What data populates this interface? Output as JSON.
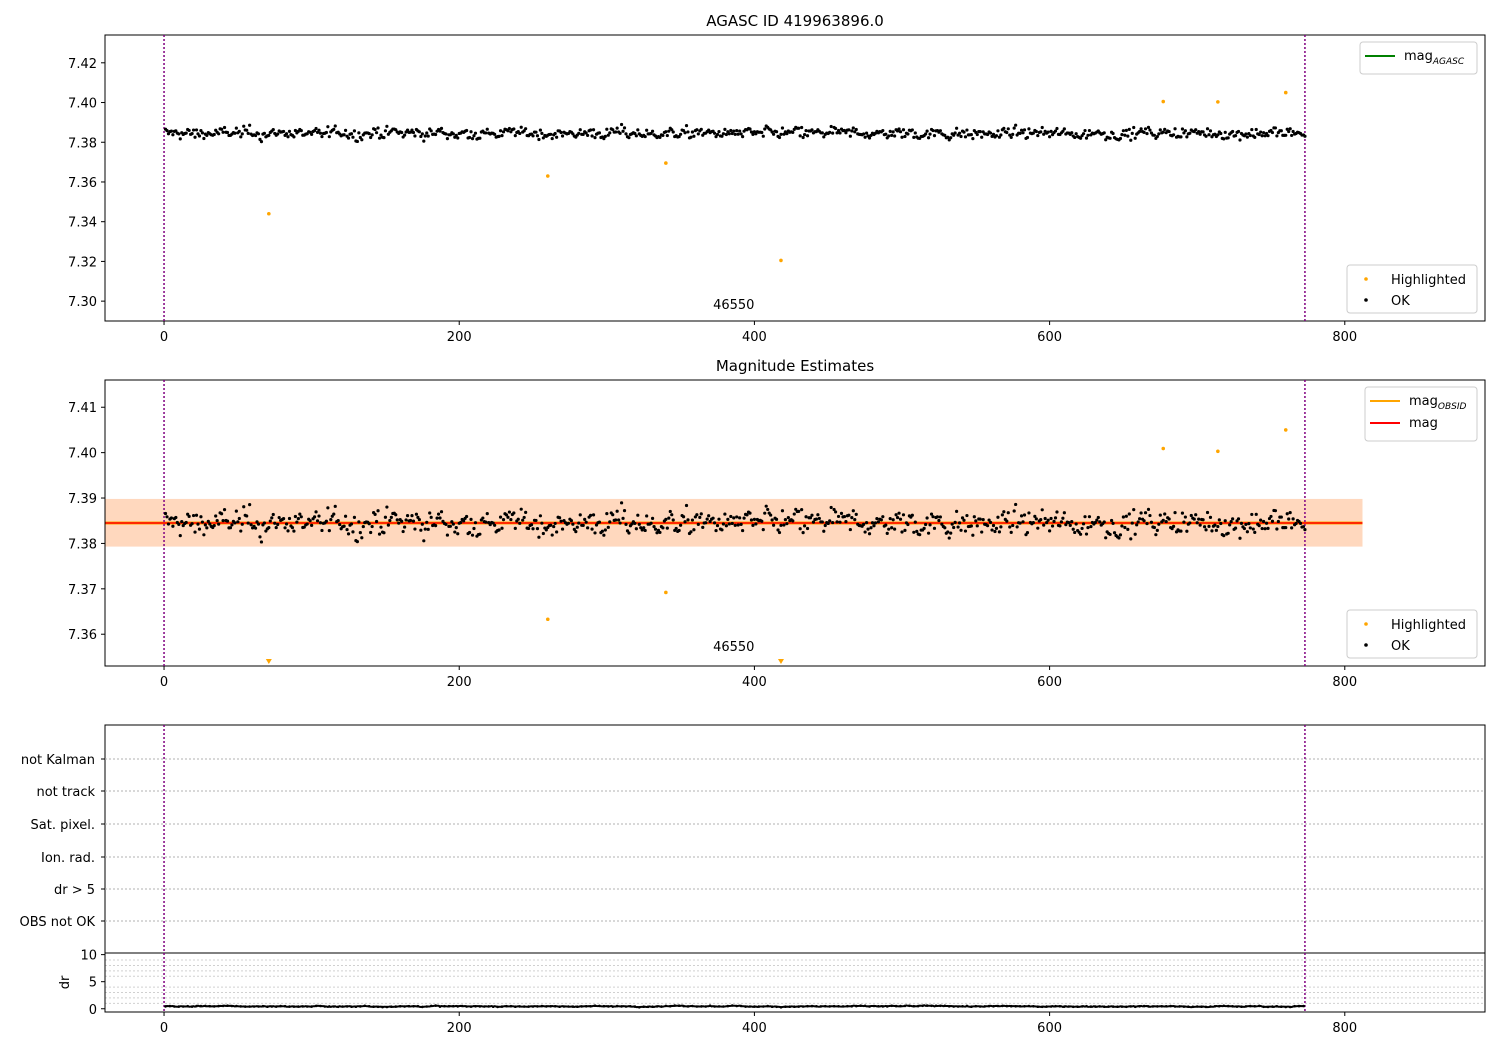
{
  "chart_data": [
    {
      "type": "scatter",
      "title": "AGASC ID 419963896.0",
      "xlim": [
        -40,
        895
      ],
      "ylim": [
        7.29,
        7.434
      ],
      "xticks": [
        0,
        200,
        400,
        600,
        800
      ],
      "yticks": [
        7.3,
        7.32,
        7.34,
        7.36,
        7.38,
        7.4,
        7.42
      ],
      "ytick_labels": [
        "7.30",
        "7.32",
        "7.34",
        "7.36",
        "7.38",
        "7.40",
        "7.42"
      ],
      "vlines_x": [
        0,
        773
      ],
      "annotation": {
        "text": "46550",
        "x": 386,
        "y": 7.296
      },
      "legend_top": [
        {
          "label": "mag",
          "sub": "AGASC",
          "color": "#008000"
        }
      ],
      "legend_bottom": [
        {
          "label": "Highlighted",
          "color": "#ffa500"
        },
        {
          "label": "OK",
          "color": "#000000"
        }
      ],
      "ok_points": {
        "n": 773,
        "x_start": 1,
        "x_end": 773,
        "center": 7.3845,
        "spread": 0.0058
      },
      "highlighted_points": [
        {
          "x": 71,
          "y": 7.344
        },
        {
          "x": 260,
          "y": 7.363
        },
        {
          "x": 340,
          "y": 7.3695
        },
        {
          "x": 418,
          "y": 7.3205
        },
        {
          "x": 677,
          "y": 7.4005
        },
        {
          "x": 714,
          "y": 7.4003
        },
        {
          "x": 760,
          "y": 7.405
        }
      ]
    },
    {
      "type": "scatter",
      "title": "Magnitude Estimates",
      "xlim": [
        -40,
        895
      ],
      "ylim": [
        7.353,
        7.416
      ],
      "xticks": [
        0,
        200,
        400,
        600,
        800
      ],
      "yticks": [
        7.36,
        7.37,
        7.38,
        7.39,
        7.4,
        7.41
      ],
      "ytick_labels": [
        "7.36",
        "7.37",
        "7.38",
        "7.39",
        "7.40",
        "7.41"
      ],
      "vlines_x": [
        0,
        773
      ],
      "mag_line": {
        "y": 7.3845,
        "x_range": [
          -40,
          812
        ],
        "color": "#ff0000"
      },
      "mag_band": {
        "y_range": [
          7.3793,
          7.3898
        ],
        "x_range": [
          -40,
          812
        ]
      },
      "annotation": {
        "text": "46550",
        "x": 386,
        "y": 7.3563
      },
      "legend_top": [
        {
          "label": "mag",
          "sub": "OBSID",
          "color": "#ffa500"
        },
        {
          "label": "mag",
          "sub": "",
          "color": "#ff0000"
        }
      ],
      "legend_bottom": [
        {
          "label": "Highlighted",
          "color": "#ffa500"
        },
        {
          "label": "OK",
          "color": "#000000"
        }
      ],
      "highlighted_points": [
        {
          "x": 260,
          "y": 7.3633
        },
        {
          "x": 340,
          "y": 7.3692
        },
        {
          "x": 677,
          "y": 7.4009
        },
        {
          "x": 714,
          "y": 7.4003
        },
        {
          "x": 760,
          "y": 7.405
        }
      ],
      "offscale_markers": [
        {
          "x": 71
        },
        {
          "x": 418
        }
      ]
    },
    {
      "type": "scatter",
      "title": "",
      "xlim": [
        -40,
        895
      ],
      "flag_rows": [
        "not Kalman",
        "not track",
        "Sat. pixel.",
        "Ion. rad.",
        "dr > 5",
        "OBS not OK"
      ],
      "vlines_x": [
        0,
        773
      ]
    },
    {
      "type": "line",
      "title": "",
      "ylabel": "dr",
      "xlim": [
        -40,
        895
      ],
      "ylim": [
        -0.6,
        10.3
      ],
      "xticks": [
        0,
        200,
        400,
        600,
        800
      ],
      "yticks": [
        0,
        5,
        10
      ],
      "ytick_labels": [
        "0",
        "5",
        "10"
      ],
      "vlines_x": [
        0,
        773
      ],
      "dr_points": {
        "n": 773,
        "x_start": 1,
        "x_end": 773,
        "center": 0.45,
        "spread": 0.25
      }
    }
  ]
}
